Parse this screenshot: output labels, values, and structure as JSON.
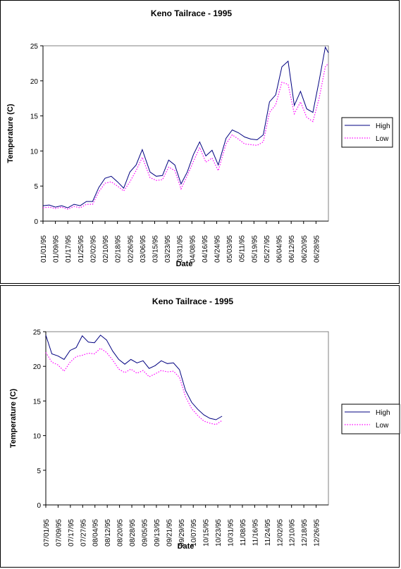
{
  "chart_data": [
    {
      "type": "line",
      "title": "Keno Tailrace - 1995",
      "xlabel": "Date",
      "ylabel": "Temperature (C)",
      "ylim": [
        0,
        25
      ],
      "yticks": [
        0,
        5,
        10,
        15,
        20,
        25
      ],
      "xlim": [
        "01/01/95",
        "07/04/95"
      ],
      "xtick_labels": [
        "01/01/95",
        "01/09/95",
        "01/17/95",
        "01/25/95",
        "02/02/95",
        "02/10/95",
        "02/18/95",
        "02/26/95",
        "03/06/95",
        "03/15/95",
        "03/23/95",
        "03/31/95",
        "04/08/95",
        "04/16/95",
        "04/24/95",
        "05/03/95",
        "05/11/95",
        "05/19/95",
        "05/27/95",
        "06/04/95",
        "06/12/95",
        "06/20/95",
        "06/28/95"
      ],
      "legend": "right",
      "grid": false,
      "series": [
        {
          "name": "High",
          "color": "#000080",
          "style": "solid",
          "x": [
            "01/01/95",
            "01/05/95",
            "01/09/95",
            "01/13/95",
            "01/17/95",
            "01/21/95",
            "01/25/95",
            "01/29/95",
            "02/02/95",
            "02/06/95",
            "02/10/95",
            "02/14/95",
            "02/18/95",
            "02/22/95",
            "02/26/95",
            "03/02/95",
            "03/06/95",
            "03/11/95",
            "03/15/95",
            "03/19/95",
            "03/23/95",
            "03/27/95",
            "03/31/95",
            "04/04/95",
            "04/08/95",
            "04/12/95",
            "04/16/95",
            "04/20/95",
            "04/24/95",
            "04/29/95",
            "05/03/95",
            "05/07/95",
            "05/11/95",
            "05/15/95",
            "05/19/95",
            "05/23/95",
            "05/27/95",
            "05/31/95",
            "06/04/95",
            "06/08/95",
            "06/12/95",
            "06/16/95",
            "06/20/95",
            "06/24/95",
            "06/28/95",
            "07/02/95",
            "07/04/95"
          ],
          "values": [
            2.2,
            2.3,
            2.0,
            2.2,
            1.9,
            2.4,
            2.2,
            2.8,
            2.8,
            4.8,
            6.1,
            6.4,
            5.6,
            4.7,
            7.0,
            8.0,
            10.2,
            7.0,
            6.4,
            6.5,
            8.7,
            8.0,
            5.3,
            7.0,
            9.5,
            11.3,
            9.3,
            10.1,
            8.0,
            11.8,
            13.0,
            12.6,
            12.0,
            11.7,
            11.6,
            12.3,
            17.0,
            18.0,
            22.0,
            22.8,
            16.5,
            18.5,
            16.0,
            15.5,
            20.0,
            24.8,
            24.0
          ]
        },
        {
          "name": "Low",
          "color": "#ff00ff",
          "style": "dotted",
          "x": [
            "01/01/95",
            "01/05/95",
            "01/09/95",
            "01/13/95",
            "01/17/95",
            "01/21/95",
            "01/25/95",
            "01/29/95",
            "02/02/95",
            "02/06/95",
            "02/10/95",
            "02/14/95",
            "02/18/95",
            "02/22/95",
            "02/26/95",
            "03/02/95",
            "03/06/95",
            "03/11/95",
            "03/15/95",
            "03/19/95",
            "03/23/95",
            "03/27/95",
            "03/31/95",
            "04/04/95",
            "04/08/95",
            "04/12/95",
            "04/16/95",
            "04/20/95",
            "04/24/95",
            "04/29/95",
            "05/03/95",
            "05/07/95",
            "05/11/95",
            "05/15/95",
            "05/19/95",
            "05/23/95",
            "05/27/95",
            "05/31/95",
            "06/04/95",
            "06/08/95",
            "06/12/95",
            "06/16/95",
            "06/20/95",
            "06/24/95",
            "06/28/95",
            "07/02/95",
            "07/04/95"
          ],
          "values": [
            1.9,
            2.0,
            1.8,
            2.0,
            1.7,
            2.1,
            1.9,
            2.4,
            2.4,
            4.2,
            5.4,
            5.6,
            5.0,
            4.3,
            5.6,
            7.2,
            9.1,
            6.2,
            5.8,
            5.9,
            7.7,
            7.2,
            4.6,
            6.5,
            8.5,
            10.5,
            8.4,
            9.0,
            7.2,
            11.0,
            12.3,
            11.7,
            11.0,
            10.9,
            10.8,
            11.3,
            15.5,
            16.6,
            19.8,
            19.5,
            15.3,
            17.0,
            14.8,
            14.2,
            17.5,
            22.0,
            22.5
          ]
        }
      ]
    },
    {
      "type": "line",
      "title": "Keno Tailrace - 1995",
      "xlabel": "Date",
      "ylabel": "Temperature (C)",
      "ylim": [
        0,
        25
      ],
      "yticks": [
        0,
        5,
        10,
        15,
        20,
        25
      ],
      "xlim": [
        "07/01/95",
        "01/03/96"
      ],
      "xtick_labels": [
        "07/01/95",
        "07/09/95",
        "07/17/95",
        "07/27/95",
        "08/04/95",
        "08/12/95",
        "08/20/95",
        "08/28/95",
        "09/05/95",
        "09/13/95",
        "09/21/95",
        "09/29/95",
        "10/07/95",
        "10/15/95",
        "10/23/95",
        "10/31/95",
        "11/08/95",
        "11/16/95",
        "11/24/95",
        "12/02/95",
        "12/10/95",
        "12/18/95",
        "12/26/95"
      ],
      "legend": "right",
      "grid": false,
      "series": [
        {
          "name": "High",
          "color": "#000080",
          "style": "solid",
          "x": [
            "07/01/95",
            "07/05/95",
            "07/09/95",
            "07/13/95",
            "07/17/95",
            "07/21/95",
            "07/25/95",
            "07/29/95",
            "08/02/95",
            "08/06/95",
            "08/10/95",
            "08/14/95",
            "08/18/95",
            "08/22/95",
            "08/26/95",
            "08/30/95",
            "09/03/95",
            "09/07/95",
            "09/11/95",
            "09/15/95",
            "09/19/95",
            "09/23/95",
            "09/27/95",
            "10/01/95",
            "10/05/95",
            "10/09/95",
            "10/13/95",
            "10/17/95",
            "10/21/95",
            "10/25/95"
          ],
          "values": [
            24.5,
            21.8,
            21.5,
            21.0,
            22.3,
            22.7,
            24.4,
            23.5,
            23.4,
            24.5,
            23.8,
            22.2,
            21.0,
            20.3,
            21.0,
            20.5,
            20.8,
            19.7,
            20.1,
            20.8,
            20.4,
            20.5,
            19.5,
            16.5,
            14.8,
            13.8,
            13.0,
            12.5,
            12.3,
            12.8
          ]
        },
        {
          "name": "Low",
          "color": "#ff00ff",
          "style": "dotted",
          "x": [
            "07/01/95",
            "07/05/95",
            "07/09/95",
            "07/13/95",
            "07/17/95",
            "07/21/95",
            "07/25/95",
            "07/29/95",
            "08/02/95",
            "08/06/95",
            "08/10/95",
            "08/14/95",
            "08/18/95",
            "08/22/95",
            "08/26/95",
            "08/30/95",
            "09/03/95",
            "09/07/95",
            "09/11/95",
            "09/15/95",
            "09/19/95",
            "09/23/95",
            "09/27/95",
            "10/01/95",
            "10/05/95",
            "10/09/95",
            "10/13/95",
            "10/17/95",
            "10/21/95",
            "10/25/95"
          ],
          "values": [
            22.0,
            20.6,
            20.2,
            19.3,
            20.6,
            21.4,
            21.6,
            21.9,
            21.8,
            22.6,
            22.0,
            20.9,
            19.6,
            19.1,
            19.6,
            19.0,
            19.4,
            18.5,
            18.9,
            19.4,
            19.2,
            19.3,
            18.4,
            15.6,
            13.9,
            12.9,
            12.1,
            11.8,
            11.6,
            12.2
          ]
        }
      ]
    }
  ]
}
